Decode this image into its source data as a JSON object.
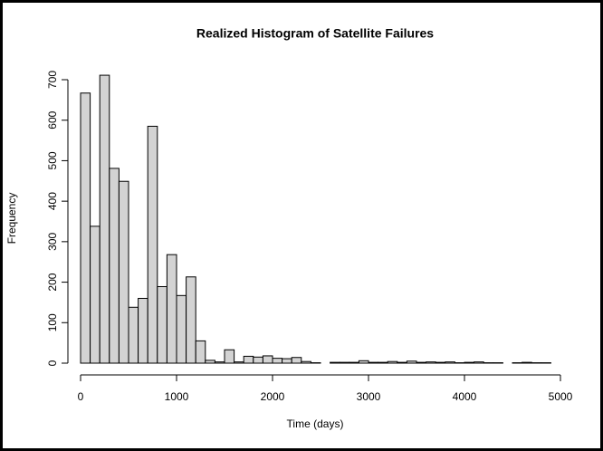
{
  "chart_data": {
    "type": "histogram",
    "title": "Realized Histogram of Satellite Failures",
    "x_label": "Time (days)",
    "y_label": "Frequency",
    "color": "#d3d3d3",
    "bins": [
      0,
      100,
      200,
      300,
      400,
      500,
      600,
      700,
      800,
      900,
      1000,
      1100,
      1200,
      1300,
      1400,
      1500,
      1600,
      1700,
      1800,
      1900,
      2000,
      2100,
      2200,
      2300,
      2400,
      2500,
      2600,
      2700,
      2800,
      2900,
      3000,
      3100,
      3200,
      3300,
      3400,
      3500,
      3600,
      3700,
      3800,
      3900,
      4000,
      4100,
      4200,
      4300,
      4400,
      4500,
      4600,
      4700,
      4800,
      4900
    ],
    "values": [
      667,
      338,
      711,
      481,
      449,
      138,
      160,
      585,
      189,
      268,
      167,
      213,
      55,
      7,
      3,
      33,
      3,
      17,
      15,
      18,
      12,
      11,
      14,
      4,
      1,
      0,
      2,
      2,
      2,
      6,
      2,
      2,
      4,
      2,
      5,
      2,
      3,
      2,
      3,
      1,
      2,
      3,
      1,
      1,
      0,
      1,
      2,
      1,
      1
    ],
    "xlim": [
      0,
      5000
    ],
    "xticks": [
      0,
      1000,
      2000,
      3000,
      4000,
      5000
    ],
    "ylim": [
      0,
      700
    ],
    "yticks": [
      0,
      100,
      200,
      300,
      400,
      500,
      600,
      700
    ]
  }
}
